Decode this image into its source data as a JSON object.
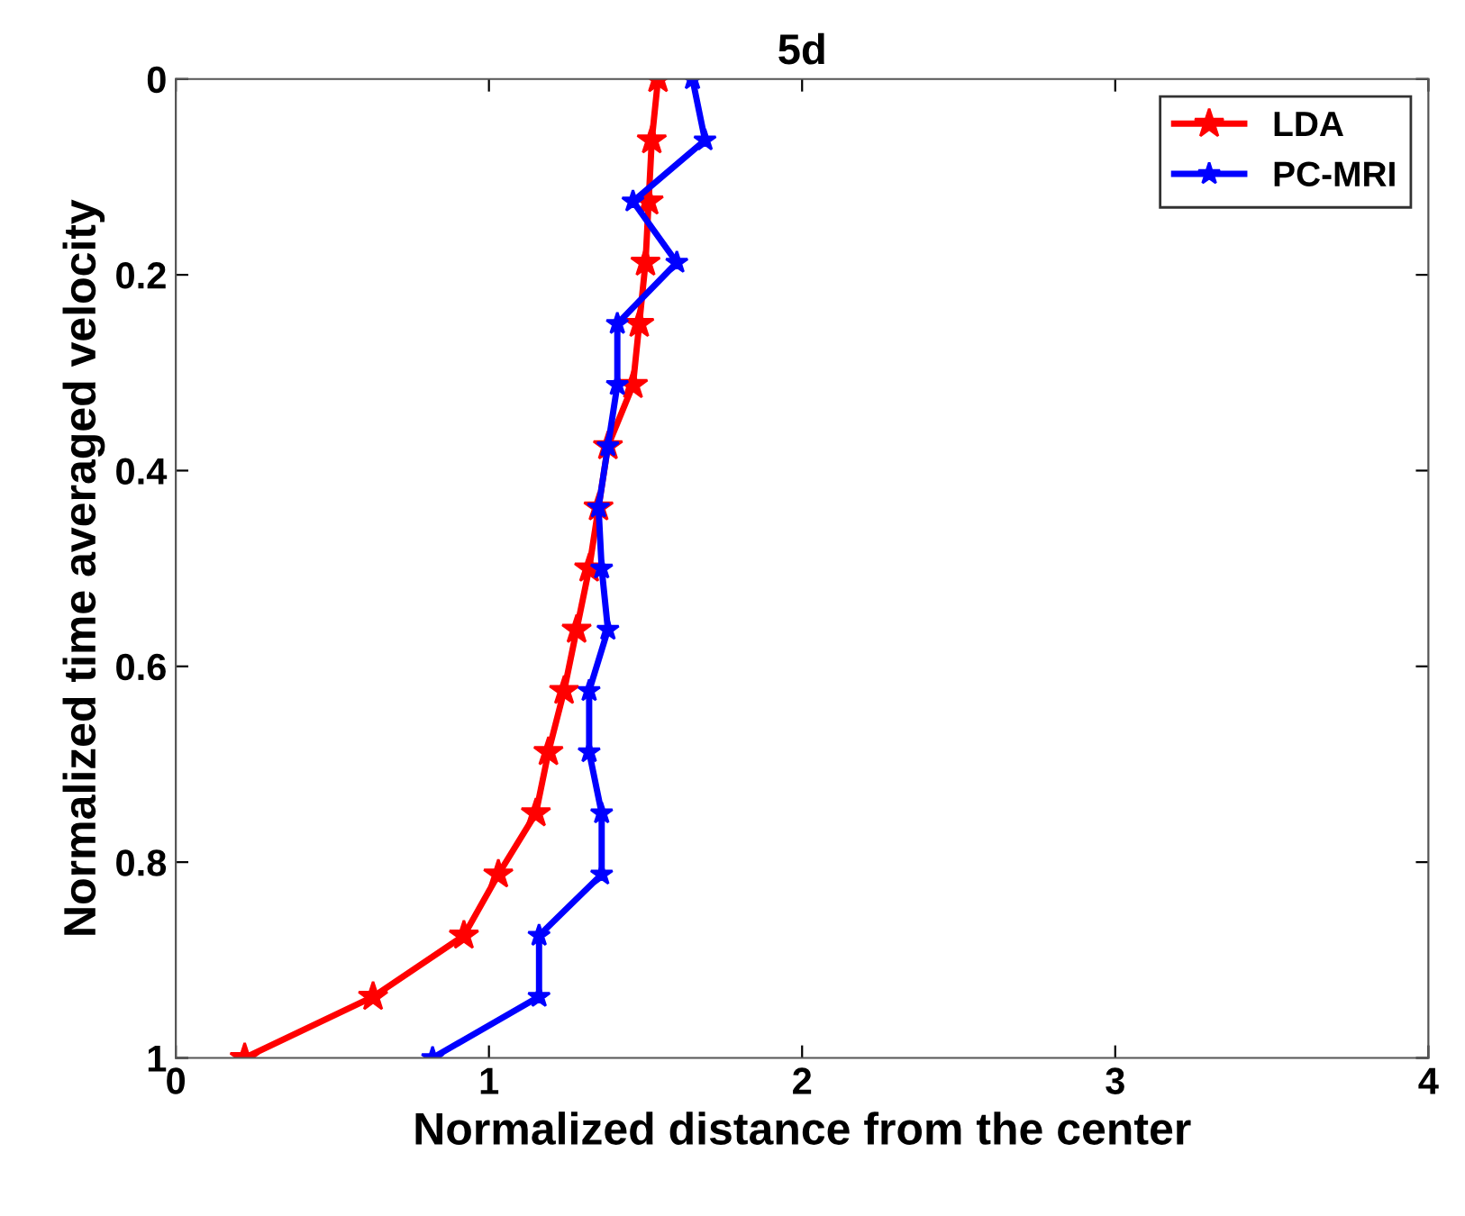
{
  "chart_data": {
    "type": "line",
    "title": "5d",
    "xlabel": "Normalized distance from the center",
    "ylabel": "Normalized time averaged velocity",
    "xlim": [
      0,
      4
    ],
    "xticks": [
      0,
      1,
      2,
      3,
      4
    ],
    "ylim": [
      1,
      0
    ],
    "yticks": [
      0,
      0.2,
      0.4,
      0.6,
      0.8,
      1
    ],
    "grid": false,
    "legend": "top right",
    "marker": "star",
    "line_style": "solid",
    "series": [
      {
        "name": "LDA",
        "color": "#ff0000",
        "x": [
          1.54,
          1.52,
          1.51,
          1.5,
          1.48,
          1.46,
          1.38,
          1.35,
          1.32,
          1.28,
          1.24,
          1.19,
          1.15,
          1.03,
          0.92,
          0.63,
          0.22
        ],
        "values": [
          0,
          0.0625,
          0.125,
          0.1875,
          0.25,
          0.3125,
          0.375,
          0.4375,
          0.5,
          0.5625,
          0.625,
          0.6875,
          0.75,
          0.8125,
          0.875,
          0.9375,
          1
        ]
      },
      {
        "name": "PC-MRI",
        "color": "#0000ff",
        "x": [
          1.65,
          1.69,
          1.46,
          1.6,
          1.41,
          1.41,
          1.38,
          1.35,
          1.36,
          1.38,
          1.32,
          1.32,
          1.36,
          1.36,
          1.16,
          1.16,
          0.82
        ],
        "values": [
          0,
          0.0625,
          0.125,
          0.1875,
          0.25,
          0.3125,
          0.375,
          0.4375,
          0.5,
          0.5625,
          0.625,
          0.6875,
          0.75,
          0.8125,
          0.875,
          0.9375,
          1
        ]
      }
    ]
  }
}
